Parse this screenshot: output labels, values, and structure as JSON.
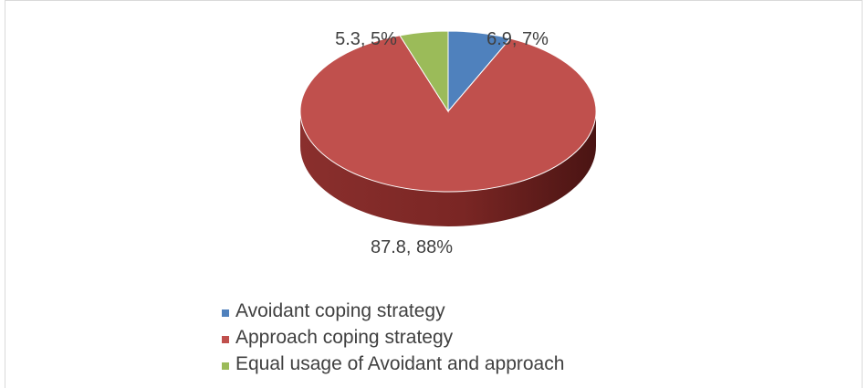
{
  "chart_data": {
    "type": "pie",
    "style": "3d",
    "slices": [
      {
        "name": "Avoidant coping strategy",
        "value": 6.9,
        "label": "6.9, 7%",
        "color": "#4f81bd"
      },
      {
        "name": "Approach coping strategy",
        "value": 87.8,
        "label": "87.8, 88%",
        "color": "#c0504d"
      },
      {
        "name": "Equal usage of Avoidant and approach",
        "value": 5.3,
        "label": "5.3, 5%",
        "color": "#9bbb59"
      }
    ],
    "legend_position": "bottom"
  }
}
